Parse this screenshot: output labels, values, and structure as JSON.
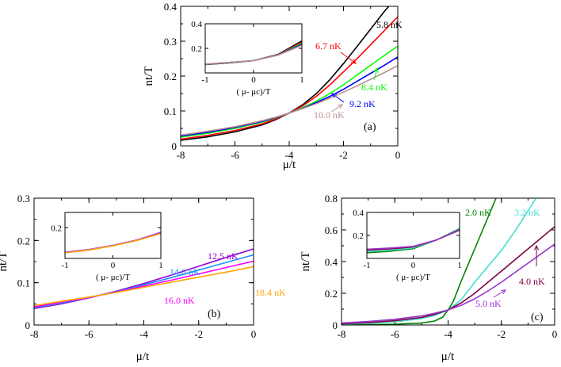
{
  "chart_data": [
    {
      "type": "line",
      "panel_label": "(a)",
      "xlabel": "μ/t",
      "ylabel": "nt/T",
      "xlim": [
        -8,
        0
      ],
      "ylim": [
        0,
        0.4
      ],
      "xticks": [
        -8,
        -6,
        -4,
        -2,
        0
      ],
      "yticks": [
        0,
        0.1,
        0.2,
        0.3,
        0.4
      ],
      "xtick_labels": [
        "-8",
        "-6",
        "-4",
        "-2",
        "0"
      ],
      "ytick_labels": [
        "0",
        "0.1",
        "0.2",
        "0.3",
        "0.4"
      ],
      "series": [
        {
          "name": "5.8 nK",
          "color": "#000000",
          "x": [
            -8,
            -7,
            -6,
            -5,
            -4.5,
            -4,
            -3.5,
            -3,
            -2.5,
            -2,
            -1.5,
            -1,
            -0.5,
            0
          ],
          "y": [
            0.016,
            0.026,
            0.04,
            0.06,
            0.075,
            0.094,
            0.118,
            0.15,
            0.19,
            0.236,
            0.285,
            0.335,
            0.385,
            0.43
          ]
        },
        {
          "name": "6.7 nK",
          "color": "#ff0000",
          "x": [
            -8,
            -7,
            -6,
            -5,
            -4.5,
            -4,
            -3.5,
            -3,
            -2.5,
            -2,
            -1.5,
            -1,
            -0.5,
            0
          ],
          "y": [
            0.019,
            0.03,
            0.044,
            0.063,
            0.077,
            0.094,
            0.115,
            0.142,
            0.175,
            0.212,
            0.25,
            0.29,
            0.33,
            0.37
          ]
        },
        {
          "name": "8.4 nK",
          "color": "#00ff00",
          "x": [
            -8,
            -7,
            -6,
            -5,
            -4.5,
            -4,
            -3.5,
            -3,
            -2.5,
            -2,
            -1.5,
            -1,
            -0.5,
            0
          ],
          "y": [
            0.025,
            0.036,
            0.05,
            0.068,
            0.08,
            0.094,
            0.11,
            0.128,
            0.15,
            0.175,
            0.203,
            0.231,
            0.259,
            0.286
          ]
        },
        {
          "name": "9.2 nK",
          "color": "#0000ff",
          "x": [
            -8,
            -7,
            -6,
            -5,
            -4.5,
            -4,
            -3.5,
            -3,
            -2.5,
            -2,
            -1.5,
            -1,
            -0.5,
            0
          ],
          "y": [
            0.028,
            0.039,
            0.053,
            0.07,
            0.081,
            0.094,
            0.108,
            0.124,
            0.142,
            0.162,
            0.185,
            0.208,
            0.231,
            0.255
          ]
        },
        {
          "name": "10.0 nK",
          "color": "#bc8f8f",
          "x": [
            -8,
            -7,
            -6,
            -5,
            -4.5,
            -4,
            -3.5,
            -3,
            -2.5,
            -2,
            -1.5,
            -1,
            -0.5,
            0
          ],
          "y": [
            0.031,
            0.042,
            0.055,
            0.072,
            0.082,
            0.094,
            0.107,
            0.121,
            0.137,
            0.154,
            0.172,
            0.191,
            0.21,
            0.23
          ]
        }
      ],
      "annotations": [
        "5.8 nK",
        "6.7 nK",
        "8.4 nK",
        "9.2 nK",
        "10.0 nK"
      ],
      "inset": {
        "xlabel": "( μ- μc)/T",
        "xlim": [
          -1,
          1
        ],
        "ylim": [
          0,
          0.4
        ],
        "xticks": [
          -1,
          0,
          1
        ],
        "yticks": [
          0.2,
          0.4
        ],
        "xtick_labels": [
          "-1",
          "0",
          "1"
        ],
        "ytick_labels": [
          "0.2",
          "0.4"
        ],
        "series": [
          {
            "name": "5.8 nK",
            "color": "#000000",
            "x": [
              -1,
              -0.5,
              0,
              0.5,
              1
            ],
            "y": [
              0.068,
              0.082,
              0.1,
              0.15,
              0.26
            ]
          },
          {
            "name": "6.7 nK",
            "color": "#ff0000",
            "x": [
              -1,
              -0.5,
              0,
              0.5,
              1
            ],
            "y": [
              0.069,
              0.083,
              0.1,
              0.148,
              0.25
            ]
          },
          {
            "name": "8.4 nK",
            "color": "#00ff00",
            "x": [
              -1,
              -0.5,
              0,
              0.5,
              1
            ],
            "y": [
              0.07,
              0.084,
              0.1,
              0.146,
              0.24
            ]
          },
          {
            "name": "9.2 nK",
            "color": "#0000ff",
            "x": [
              -1,
              -0.5,
              0,
              0.5,
              1
            ],
            "y": [
              0.071,
              0.085,
              0.1,
              0.145,
              0.232
            ]
          },
          {
            "name": "10.0 nK",
            "color": "#bc8f8f",
            "x": [
              -1,
              -0.5,
              0,
              0.5,
              1
            ],
            "y": [
              0.072,
              0.086,
              0.1,
              0.144,
              0.225
            ]
          }
        ]
      }
    },
    {
      "type": "line",
      "panel_label": "(b)",
      "xlabel": "μ/t",
      "ylabel": "nt/T",
      "xlim": [
        -8,
        0
      ],
      "ylim": [
        0,
        0.3
      ],
      "xticks": [
        -8,
        -6,
        -4,
        -2,
        0
      ],
      "yticks": [
        0,
        0.1,
        0.2,
        0.3
      ],
      "xtick_labels": [
        "-8",
        "-6",
        "-4",
        "-2",
        "0"
      ],
      "ytick_labels": [
        "0",
        "0.1",
        "0.2",
        "0.3"
      ],
      "series": [
        {
          "name": "12.5 nK",
          "color": "#9400d3",
          "x": [
            -8,
            -7,
            -6,
            -5,
            -4,
            -3,
            -2,
            -1,
            0
          ],
          "y": [
            0.039,
            0.05,
            0.064,
            0.08,
            0.098,
            0.118,
            0.139,
            0.16,
            0.18
          ]
        },
        {
          "name": "14.0 nK",
          "color": "#1e90ff",
          "x": [
            -8,
            -7,
            -6,
            -5,
            -4,
            -3,
            -2,
            -1,
            0
          ],
          "y": [
            0.041,
            0.052,
            0.065,
            0.079,
            0.095,
            0.112,
            0.13,
            0.148,
            0.166
          ]
        },
        {
          "name": "16.0 nK",
          "color": "#ff00ff",
          "x": [
            -8,
            -7,
            -6,
            -5,
            -4,
            -3,
            -2,
            -1,
            0
          ],
          "y": [
            0.043,
            0.054,
            0.065,
            0.078,
            0.092,
            0.106,
            0.121,
            0.136,
            0.151
          ]
        },
        {
          "name": "18.4 nK",
          "color": "#ffa500",
          "x": [
            -8,
            -7,
            -6,
            -5,
            -4,
            -3,
            -2,
            -1,
            0
          ],
          "y": [
            0.046,
            0.056,
            0.066,
            0.077,
            0.089,
            0.101,
            0.113,
            0.125,
            0.138
          ]
        }
      ],
      "annotations": [
        "12.5 nK",
        "14.0 nK",
        "16.0 nK",
        "18.4 nK"
      ],
      "inset": {
        "xlabel": "( μ- μc)/T",
        "xlim": [
          -1,
          1
        ],
        "ylim": [
          0,
          0.3
        ],
        "xticks": [
          -1,
          0,
          1
        ],
        "yticks": [
          0.2
        ],
        "xtick_labels": [
          "-1",
          "0",
          "1"
        ],
        "ytick_labels": [
          "0.2"
        ],
        "series": [
          {
            "name": "12.5 nK",
            "color": "#9400d3",
            "x": [
              -1,
              -0.5,
              0,
              0.5,
              1
            ],
            "y": [
              0.04,
              0.058,
              0.085,
              0.12,
              0.17
            ]
          },
          {
            "name": "14.0 nK",
            "color": "#1e90ff",
            "x": [
              -1,
              -0.5,
              0,
              0.5,
              1
            ],
            "y": [
              0.038,
              0.057,
              0.084,
              0.119,
              0.168
            ]
          },
          {
            "name": "16.0 nK",
            "color": "#ff00ff",
            "x": [
              -1,
              -0.5,
              0,
              0.5,
              1
            ],
            "y": [
              0.037,
              0.056,
              0.083,
              0.118,
              0.166
            ]
          },
          {
            "name": "18.4 nK",
            "color": "#ffa500",
            "x": [
              -1,
              -0.5,
              0,
              0.5,
              1
            ],
            "y": [
              0.036,
              0.055,
              0.082,
              0.117,
              0.163
            ]
          }
        ]
      }
    },
    {
      "type": "line",
      "panel_label": "(c)",
      "xlabel": "μ/t",
      "ylabel": "nt/T",
      "xlim": [
        -8,
        0
      ],
      "ylim": [
        0,
        0.8
      ],
      "xticks": [
        -8,
        -6,
        -4,
        -2,
        0
      ],
      "yticks": [
        0,
        0.2,
        0.4,
        0.6,
        0.8
      ],
      "xtick_labels": [
        "-8",
        "-6",
        "-4",
        "-2",
        "0"
      ],
      "ytick_labels": [
        "0",
        "0.2",
        "0.4",
        "0.6",
        "0.8"
      ],
      "series": [
        {
          "name": "2.0 nK",
          "color": "#008000",
          "x": [
            -8,
            -7,
            -6,
            -5,
            -4.5,
            -4.2,
            -4,
            -3.8,
            -3.5,
            -3,
            -2.5,
            -2.2
          ],
          "y": [
            0.001,
            0.002,
            0.005,
            0.012,
            0.025,
            0.05,
            0.095,
            0.15,
            0.28,
            0.48,
            0.68,
            0.8
          ]
        },
        {
          "name": "3.2 nK",
          "color": "#40e0d0",
          "x": [
            -8,
            -7,
            -6,
            -5,
            -4.5,
            -4,
            -3.5,
            -3,
            -2.5,
            -2,
            -1.5,
            -1,
            -0.7
          ],
          "y": [
            0.005,
            0.01,
            0.02,
            0.04,
            0.06,
            0.095,
            0.16,
            0.27,
            0.37,
            0.47,
            0.59,
            0.72,
            0.8
          ]
        },
        {
          "name": "4.0 nK",
          "color": "#800040",
          "x": [
            -8,
            -7,
            -6,
            -5,
            -4.5,
            -4,
            -3.5,
            -3,
            -2.5,
            -2,
            -1.5,
            -1,
            -0.5,
            0
          ],
          "y": [
            0.008,
            0.015,
            0.027,
            0.048,
            0.067,
            0.095,
            0.14,
            0.2,
            0.27,
            0.34,
            0.41,
            0.48,
            0.55,
            0.62
          ]
        },
        {
          "name": "5.0 nK",
          "color": "#9932cc",
          "x": [
            -8,
            -7,
            -6,
            -5,
            -4.5,
            -4,
            -3.5,
            -3,
            -2.5,
            -2,
            -1.5,
            -1,
            -0.5,
            0
          ],
          "y": [
            0.012,
            0.022,
            0.036,
            0.057,
            0.074,
            0.095,
            0.125,
            0.165,
            0.215,
            0.27,
            0.33,
            0.39,
            0.45,
            0.51
          ]
        }
      ],
      "annotations": [
        "2.0 nK",
        "3.2 nK",
        "4.0 nK",
        "5.0 nK"
      ],
      "inset": {
        "xlabel": "( μ- μc)/T",
        "xlim": [
          -1,
          1
        ],
        "ylim": [
          0,
          0.4
        ],
        "xticks": [
          -1,
          0,
          1
        ],
        "yticks": [
          0.2,
          0.4
        ],
        "xtick_labels": [
          "-1",
          "0",
          "1"
        ],
        "ytick_labels": [
          "0.2",
          "0.4"
        ],
        "series": [
          {
            "name": "2.0 nK",
            "color": "#008000",
            "x": [
              -1,
              -0.5,
              0,
              0.5,
              1
            ],
            "y": [
              0.05,
              0.062,
              0.085,
              0.16,
              0.26
            ]
          },
          {
            "name": "3.2 nK",
            "color": "#40e0d0",
            "x": [
              -1,
              -0.5,
              0,
              0.5,
              1
            ],
            "y": [
              0.06,
              0.072,
              0.092,
              0.16,
              0.255
            ]
          },
          {
            "name": "4.0 nK",
            "color": "#800040",
            "x": [
              -1,
              -0.5,
              0,
              0.5,
              1
            ],
            "y": [
              0.072,
              0.083,
              0.1,
              0.16,
              0.25
            ]
          },
          {
            "name": "5.0 nK",
            "color": "#9932cc",
            "x": [
              -1,
              -0.5,
              0,
              0.5,
              1
            ],
            "y": [
              0.08,
              0.09,
              0.105,
              0.16,
              0.245
            ]
          }
        ]
      }
    }
  ]
}
